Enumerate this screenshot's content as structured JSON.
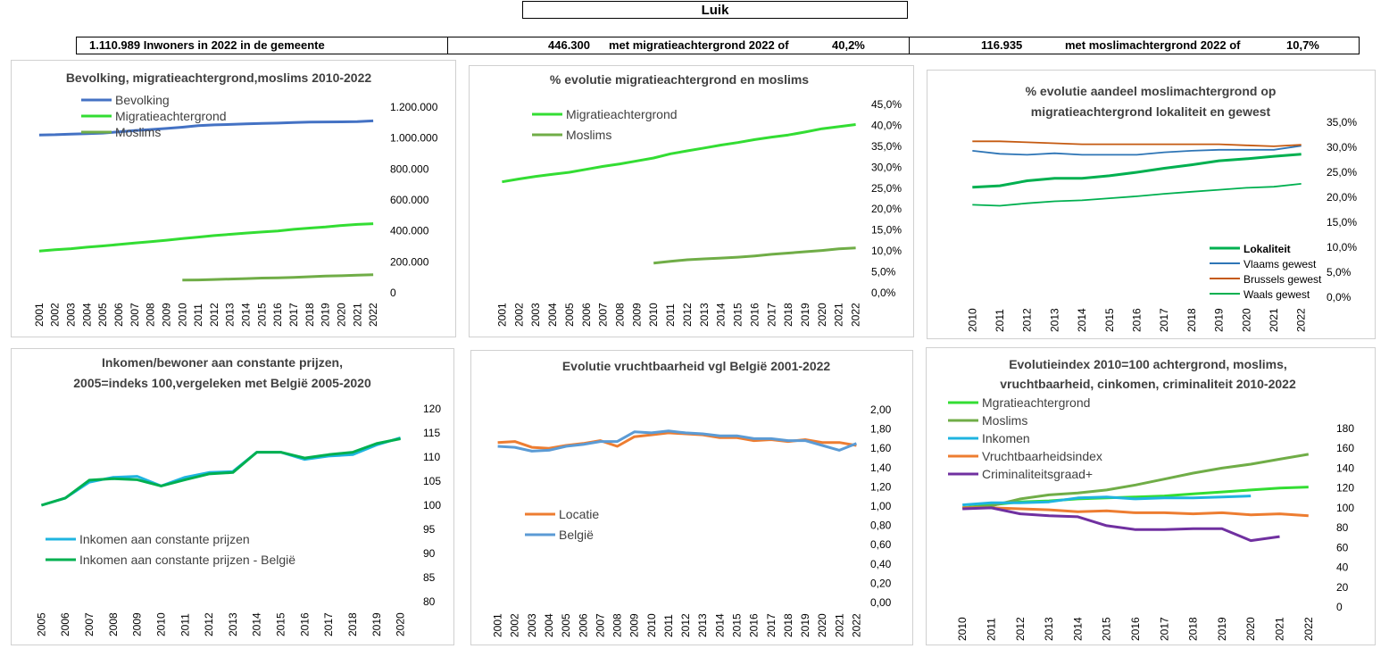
{
  "header": {
    "title": "Luik"
  },
  "summary": {
    "population_text": "1.110.989 Inwoners in 2022 in de gemeente",
    "migration_count": "446.300",
    "migration_text": "met migratieachtergrond 2022 of",
    "migration_pct": "40,2%",
    "muslim_count": "116.935",
    "muslim_text": "met moslimachtergrond 2022 of",
    "muslim_pct": "10,7%"
  },
  "chart_data": [
    {
      "id": "c1",
      "type": "line",
      "title": [
        "Bevolking, migratieachtergrond,moslims  2010-2022"
      ],
      "x": [
        "2001",
        "2002",
        "2003",
        "2004",
        "2005",
        "2006",
        "2007",
        "2008",
        "2009",
        "2010",
        "2011",
        "2012",
        "2013",
        "2014",
        "2015",
        "2016",
        "2017",
        "2018",
        "2019",
        "2020",
        "2021",
        "2022"
      ],
      "ylim": [
        0,
        1200000
      ],
      "yticks": [
        "0",
        "200.000",
        "400.000",
        "600.000",
        "800.000",
        "1.000.000",
        "1.200.000"
      ],
      "series": [
        {
          "name": "Bevolking",
          "color": "#4472C4",
          "values": [
            1020000,
            1022000,
            1026000,
            1028000,
            1032000,
            1040000,
            1048000,
            1055000,
            1062000,
            1070000,
            1080000,
            1085000,
            1088000,
            1092000,
            1095000,
            1097000,
            1100000,
            1103000,
            1104000,
            1105000,
            1106000,
            1111000
          ]
        },
        {
          "name": "Migratieachtergrond",
          "color": "#33DD33",
          "values": [
            270000,
            278000,
            285000,
            295000,
            303000,
            312000,
            322000,
            330000,
            340000,
            350000,
            360000,
            370000,
            378000,
            386000,
            393000,
            400000,
            410000,
            418000,
            425000,
            435000,
            442000,
            446300
          ]
        },
        {
          "name": "Moslims",
          "color": "#70AD47",
          "values": [
            null,
            null,
            null,
            null,
            null,
            null,
            null,
            null,
            null,
            82000,
            83000,
            86000,
            89000,
            92000,
            95000,
            97000,
            100000,
            104000,
            108000,
            110000,
            114000,
            116935
          ]
        }
      ]
    },
    {
      "id": "c2",
      "type": "line",
      "title": [
        "% evolutie migratieachtergrond  en moslims"
      ],
      "x": [
        "2001",
        "2002",
        "2003",
        "2004",
        "2005",
        "2006",
        "2007",
        "2008",
        "2009",
        "2010",
        "2011",
        "2012",
        "2013",
        "2014",
        "2015",
        "2016",
        "2017",
        "2018",
        "2019",
        "2020",
        "2021",
        "2022"
      ],
      "ylim": [
        0,
        45
      ],
      "yticks": [
        "0,0%",
        "5,0%",
        "10,0%",
        "15,0%",
        "20,0%",
        "25,0%",
        "30,0%",
        "35,0%",
        "40,0%",
        "45,0%"
      ],
      "series": [
        {
          "name": "Migratieachtergrond",
          "color": "#33DD33",
          "values": [
            26.5,
            27.2,
            27.8,
            28.3,
            28.8,
            29.5,
            30.2,
            30.8,
            31.5,
            32.2,
            33.2,
            33.9,
            34.6,
            35.3,
            35.9,
            36.6,
            37.2,
            37.7,
            38.4,
            39.2,
            39.7,
            40.2
          ]
        },
        {
          "name": "Moslims",
          "color": "#70AD47",
          "values": [
            null,
            null,
            null,
            null,
            null,
            null,
            null,
            null,
            null,
            7.1,
            7.5,
            7.9,
            8.1,
            8.3,
            8.5,
            8.8,
            9.2,
            9.5,
            9.8,
            10.1,
            10.5,
            10.7
          ]
        }
      ]
    },
    {
      "id": "c3",
      "type": "line",
      "title": [
        "% evolutie aandeel moslimachtergrond op",
        "migratieachtergrond lokaliteit en gewest"
      ],
      "x": [
        "2010",
        "2011",
        "2012",
        "2013",
        "2014",
        "2015",
        "2016",
        "2017",
        "2018",
        "2019",
        "2020",
        "2021",
        "2022"
      ],
      "ylim": [
        0,
        35
      ],
      "yticks": [
        "0,0%",
        "5,0%",
        "10,0%",
        "15,0%",
        "20,0%",
        "25,0%",
        "30,0%",
        "35,0%"
      ],
      "series": [
        {
          "name": "Lokaliteit",
          "color": "#00B050",
          "values": [
            22,
            22.3,
            23.3,
            23.8,
            23.8,
            24.3,
            25,
            25.8,
            26.5,
            27.3,
            27.7,
            28.2,
            28.6
          ]
        },
        {
          "name": "Vlaams gewest",
          "color": "#2E75B6",
          "values": [
            29.3,
            28.7,
            28.5,
            28.8,
            28.5,
            28.5,
            28.5,
            29,
            29.3,
            29.5,
            29.5,
            29.5,
            30.3
          ]
        },
        {
          "name": "Brussels gewest",
          "color": "#C55A11",
          "values": [
            31.2,
            31.2,
            31.0,
            30.8,
            30.6,
            30.6,
            30.6,
            30.6,
            30.6,
            30.6,
            30.4,
            30.2,
            30.5
          ]
        },
        {
          "name": "Waals gewest",
          "color": "#00B050",
          "values": [
            18.5,
            18.3,
            18.8,
            19.2,
            19.4,
            19.8,
            20.2,
            20.7,
            21.1,
            21.5,
            21.9,
            22.1,
            22.7
          ]
        }
      ]
    },
    {
      "id": "c4",
      "type": "line",
      "title": [
        "Inkomen/bewoner aan constante prijzen,",
        "2005=indeks 100,vergeleken met België 2005-2020"
      ],
      "x": [
        "2005",
        "2006",
        "2007",
        "2008",
        "2009",
        "2010",
        "2011",
        "2012",
        "2013",
        "2014",
        "2015",
        "2016",
        "2017",
        "2018",
        "2019",
        "2020"
      ],
      "ylim": [
        80,
        120
      ],
      "yticks": [
        "80",
        "85",
        "90",
        "95",
        "100",
        "105",
        "110",
        "115",
        "120"
      ],
      "series": [
        {
          "name": "Inkomen aan constante prijzen",
          "color": "#1FB4E0",
          "values": [
            100,
            101.5,
            104.8,
            105.8,
            106,
            104,
            105.8,
            106.8,
            107,
            111,
            111,
            109.5,
            110.2,
            110.5,
            112.5,
            114
          ]
        },
        {
          "name": "Inkomen aan constante prijzen - België",
          "color": "#00B050",
          "values": [
            100,
            101.5,
            105.2,
            105.5,
            105.3,
            104,
            105.3,
            106.5,
            106.8,
            111,
            111,
            109.8,
            110.5,
            111,
            112.8,
            113.8
          ]
        }
      ]
    },
    {
      "id": "c5",
      "type": "line",
      "title": [
        "Evolutie vruchtbaarheid vgl België 2001-2022"
      ],
      "x": [
        "2001",
        "2002",
        "2003",
        "2004",
        "2005",
        "2006",
        "2007",
        "2008",
        "2009",
        "2010",
        "2011",
        "2012",
        "2013",
        "2014",
        "2015",
        "2016",
        "2017",
        "2018",
        "2019",
        "2020",
        "2021",
        "2022"
      ],
      "ylim": [
        0,
        2
      ],
      "yticks": [
        "0,00",
        "0,20",
        "0,40",
        "0,60",
        "0,80",
        "1,00",
        "1,20",
        "1,40",
        "1,60",
        "1,80",
        "2,00"
      ],
      "series": [
        {
          "name": "Locatie",
          "color": "#ED7D31",
          "values": [
            1.66,
            1.67,
            1.61,
            1.6,
            1.63,
            1.65,
            1.68,
            1.62,
            1.72,
            1.74,
            1.76,
            1.75,
            1.74,
            1.71,
            1.71,
            1.68,
            1.69,
            1.67,
            1.69,
            1.66,
            1.66,
            1.63
          ]
        },
        {
          "name": "België",
          "color": "#5B9BD5",
          "values": [
            1.62,
            1.61,
            1.57,
            1.58,
            1.62,
            1.64,
            1.67,
            1.67,
            1.77,
            1.76,
            1.78,
            1.76,
            1.75,
            1.73,
            1.73,
            1.7,
            1.7,
            1.68,
            1.68,
            1.63,
            1.58,
            1.65
          ]
        }
      ]
    },
    {
      "id": "c6",
      "type": "line",
      "title": [
        "Evolutieindex 2010=100 achtergrond, moslims,",
        "vruchtbaarheid, cinkomen, criminaliteit  2010-2022"
      ],
      "x": [
        "2010",
        "2011",
        "2012",
        "2013",
        "2014",
        "2015",
        "2016",
        "2017",
        "2018",
        "2019",
        "2020",
        "2021",
        "2022"
      ],
      "ylim": [
        0,
        180
      ],
      "yticks": [
        "0",
        "20",
        "40",
        "60",
        "80",
        "100",
        "120",
        "140",
        "160",
        "180"
      ],
      "series": [
        {
          "name": "Mgratieachtergrond",
          "color": "#33DD33",
          "values": [
            100,
            103,
            106,
            107,
            109,
            110,
            111,
            112,
            114,
            116,
            118,
            120,
            121
          ]
        },
        {
          "name": "Moslims",
          "color": "#70AD47",
          "values": [
            100,
            102,
            109,
            113,
            115,
            118,
            123,
            129,
            135,
            140,
            144,
            149,
            154
          ]
        },
        {
          "name": "Inkomen",
          "color": "#1FB4E0",
          "values": [
            103,
            105,
            105,
            106,
            110,
            111,
            109,
            110,
            110,
            111,
            112,
            null,
            null
          ]
        },
        {
          "name": "Vruchtbaarheidsindex",
          "color": "#ED7D31",
          "values": [
            100,
            100,
            99,
            98,
            96,
            97,
            95,
            95,
            94,
            95,
            93,
            94,
            92
          ]
        },
        {
          "name": "Criminaliteitsgraad+",
          "color": "#7030A0",
          "values": [
            99,
            100,
            94,
            92,
            91,
            82,
            78,
            78,
            79,
            79,
            67,
            71,
            null
          ]
        }
      ]
    }
  ]
}
